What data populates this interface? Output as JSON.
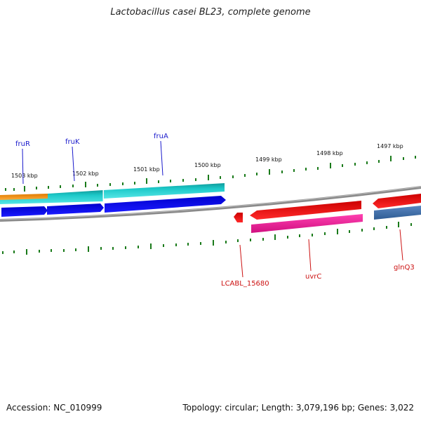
{
  "title": "Lactobacillus casei BL23, complete genome",
  "accession": "Accession: NC_010999",
  "summary": "Topology: circular; Length: 3,079,196 bp; Genes: 3,022",
  "scale_labels": [
    "1503 kbp",
    "1502 kbp",
    "1501 kbp",
    "1500 kbp",
    "1499 kbp",
    "1498 kbp",
    "1497 kbp"
  ],
  "forward_genes": [
    "fruR",
    "fruK",
    "fruA"
  ],
  "reverse_genes": [
    "LCABL_15680",
    "uvrC",
    "glnQ3"
  ],
  "colors": {
    "forward_label": "#1a1acc",
    "reverse_label": "#cc1111",
    "tick": "#1a7a1a",
    "backbone": "#888888"
  }
}
